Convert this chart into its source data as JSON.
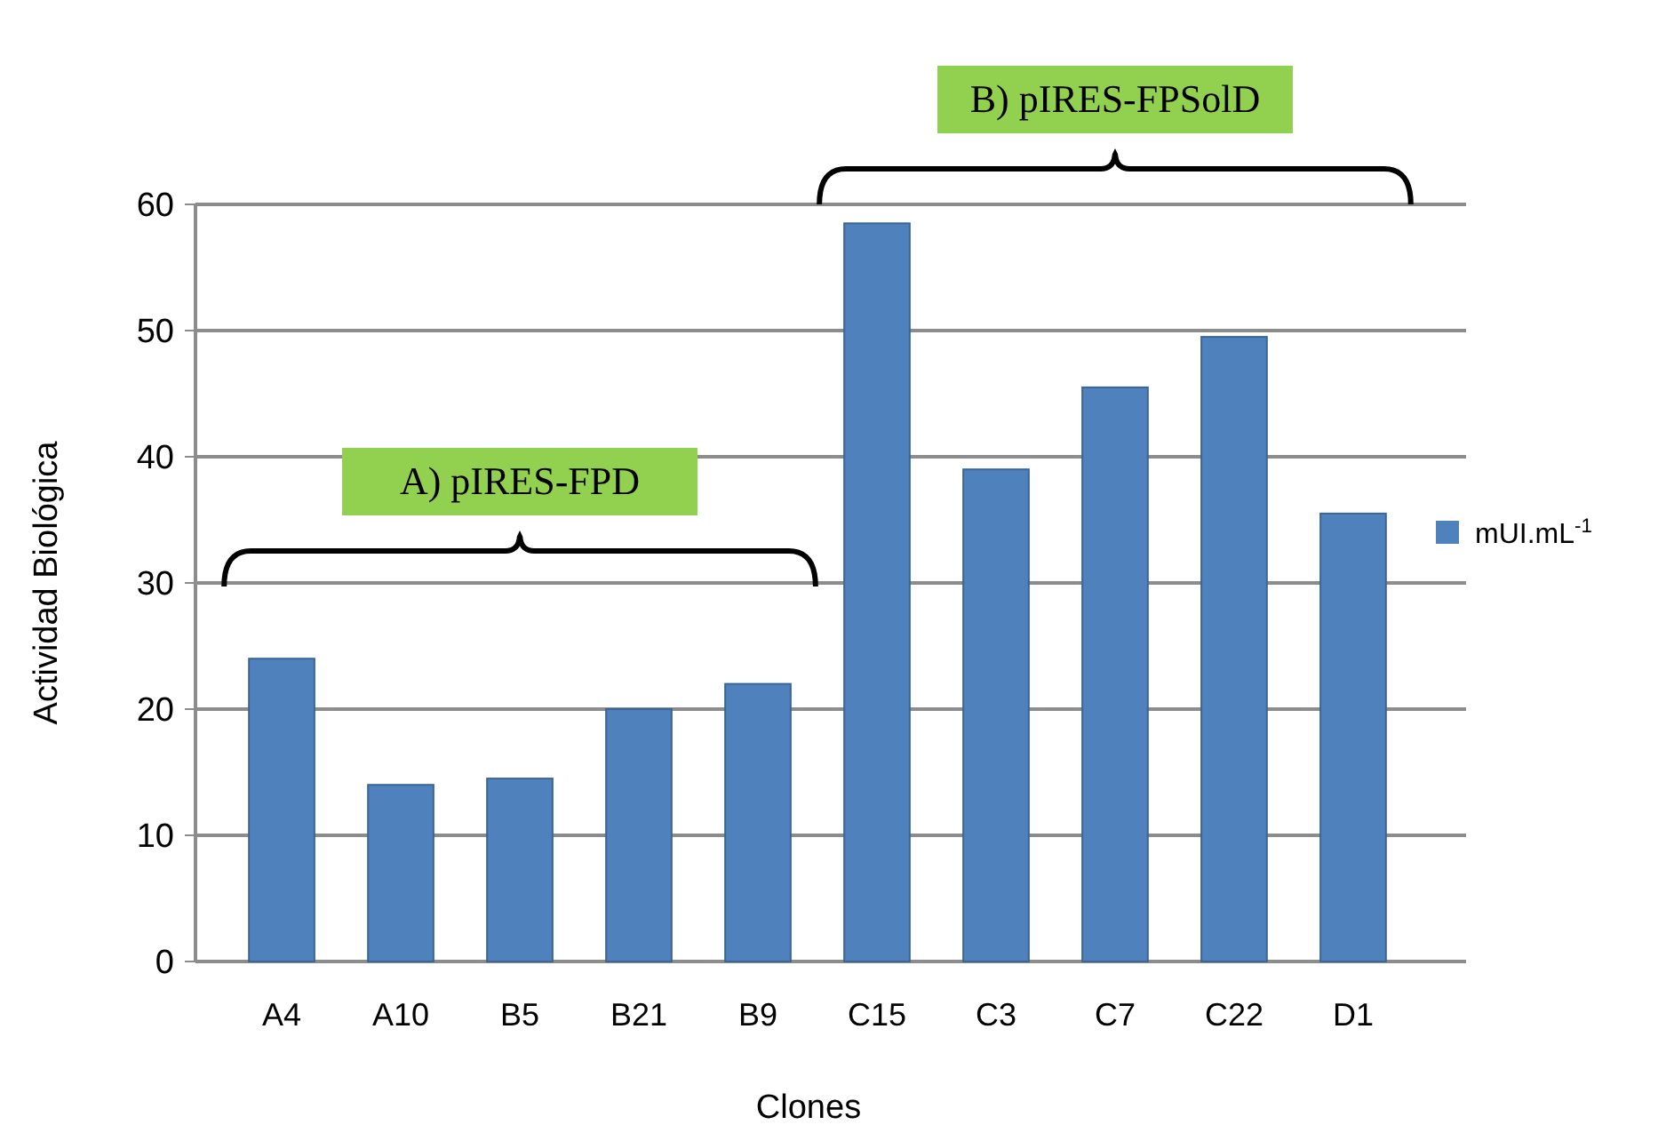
{
  "chart_data": {
    "type": "bar",
    "xlabel": "Clones",
    "ylabel": "Actividad Biológica",
    "categories": [
      "A4",
      "A10",
      "B5",
      "B21",
      "B9",
      "C15",
      "C3",
      "C7",
      "C22",
      "D1"
    ],
    "series": [
      {
        "name": "mUI.mL$^{-1}$",
        "color": "#4f81bd",
        "values": [
          24,
          14,
          14.5,
          20,
          22,
          58.5,
          39,
          45.5,
          49.5,
          35.5
        ]
      }
    ],
    "ylim": [
      0,
      60
    ],
    "yticks": [
      0,
      10,
      20,
      30,
      40,
      50,
      60
    ],
    "grid": "y",
    "legend": "right",
    "annotations": [
      "A) pIRES-FPD",
      "B) pIRES-FPSolD"
    ]
  }
}
